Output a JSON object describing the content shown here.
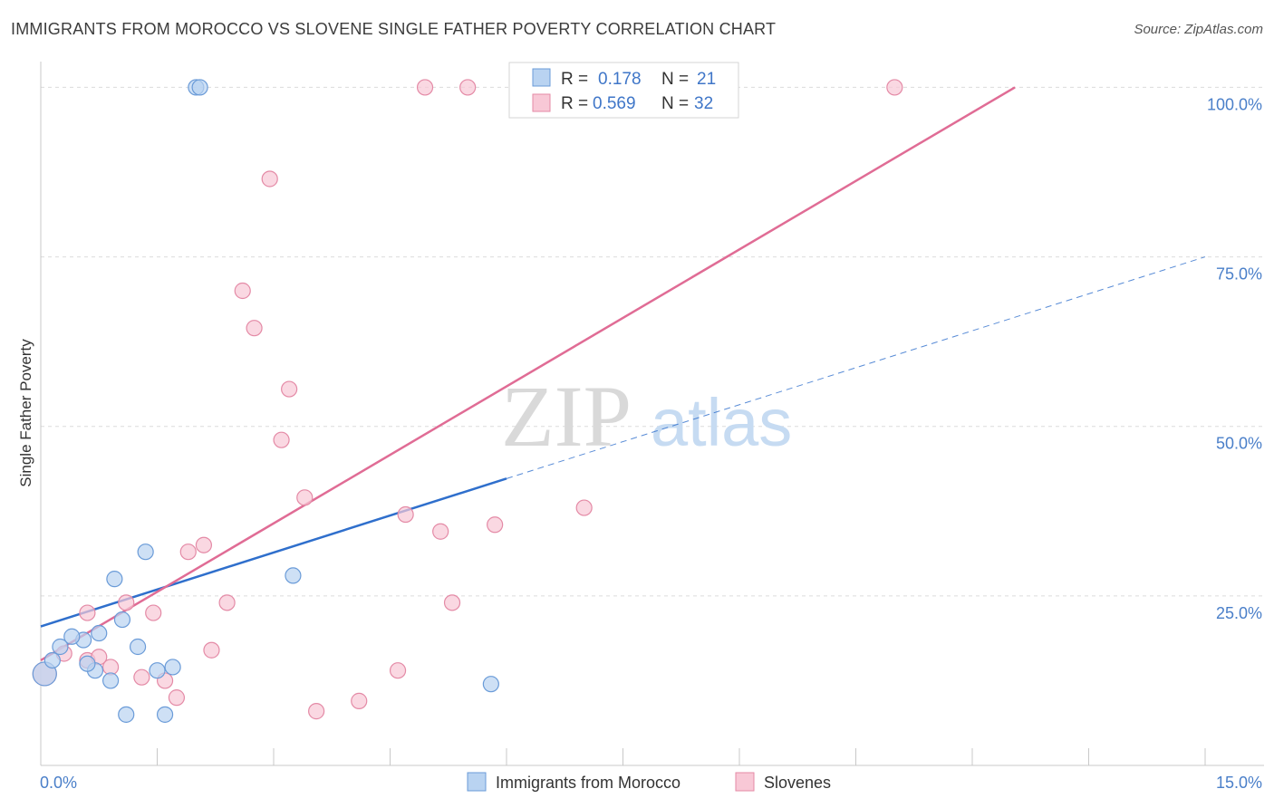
{
  "header": {
    "title": "IMMIGRANTS FROM MOROCCO VS SLOVENE SINGLE FATHER POVERTY CORRELATION CHART",
    "source": "Source: ZipAtlas.com"
  },
  "watermark": {
    "zip": "ZIP",
    "atlas": "atlas"
  },
  "colors": {
    "blue_fill": "#b9d3f1",
    "blue_stroke": "#6a9bd8",
    "blue_line": "#2f6fcc",
    "pink_fill": "#f8c8d6",
    "pink_stroke": "#e48aa6",
    "pink_line": "#e06c95",
    "grid": "#dcdcdc",
    "axis_text": "#4a7fc9"
  },
  "legend": {
    "rows": [
      {
        "r_label": "R = ",
        "r_value": "0.178",
        "n_label": "N = ",
        "n_value": "21"
      },
      {
        "r_label": "R = ",
        "r_value": "0.569",
        "n_label": "N = ",
        "n_value": "32"
      }
    ]
  },
  "chart_data": {
    "type": "scatter",
    "title": "IMMIGRANTS FROM MOROCCO VS SLOVENE SINGLE FATHER POVERTY CORRELATION CHART",
    "xlabel": "",
    "ylabel": "Single Father Poverty",
    "xlim": [
      0,
      15
    ],
    "ylim": [
      0,
      105
    ],
    "x_tick_labels": [
      "0.0%",
      "15.0%"
    ],
    "y_ticks": [
      25,
      50,
      75,
      100
    ],
    "y_tick_labels": [
      "25.0%",
      "50.0%",
      "75.0%",
      "100.0%"
    ],
    "grid": true,
    "series": [
      {
        "name": "Immigrants from Morocco",
        "color": "#b9d3f1",
        "points": [
          [
            0.05,
            13.5
          ],
          [
            0.15,
            15.5
          ],
          [
            0.25,
            17.5
          ],
          [
            0.55,
            18.5
          ],
          [
            0.4,
            19.0
          ],
          [
            0.75,
            19.5
          ],
          [
            0.7,
            14.0
          ],
          [
            0.9,
            12.5
          ],
          [
            1.05,
            21.5
          ],
          [
            1.25,
            17.5
          ],
          [
            0.95,
            27.5
          ],
          [
            1.35,
            31.5
          ],
          [
            1.5,
            14.0
          ],
          [
            1.7,
            14.5
          ],
          [
            1.1,
            7.5
          ],
          [
            1.6,
            7.5
          ],
          [
            2.0,
            100.0
          ],
          [
            2.05,
            100.0
          ],
          [
            3.25,
            28.0
          ],
          [
            5.8,
            12.0
          ],
          [
            0.6,
            15.0
          ]
        ],
        "trend": {
          "x0": 0.0,
          "y0": 20.5,
          "x_solid_end": 6.0,
          "x1": 15.0,
          "y1": 75.0
        }
      },
      {
        "name": "Slovenes",
        "color": "#f8c8d6",
        "points": [
          [
            0.05,
            13.5
          ],
          [
            0.3,
            16.5
          ],
          [
            0.6,
            15.5
          ],
          [
            0.75,
            16.0
          ],
          [
            0.9,
            14.5
          ],
          [
            0.6,
            22.5
          ],
          [
            1.1,
            24.0
          ],
          [
            1.3,
            13.0
          ],
          [
            1.45,
            22.5
          ],
          [
            1.6,
            12.5
          ],
          [
            1.75,
            10.0
          ],
          [
            1.9,
            31.5
          ],
          [
            2.1,
            32.5
          ],
          [
            2.2,
            17.0
          ],
          [
            2.4,
            24.0
          ],
          [
            2.6,
            70.0
          ],
          [
            2.75,
            64.5
          ],
          [
            2.95,
            86.5
          ],
          [
            3.1,
            48.0
          ],
          [
            3.2,
            55.5
          ],
          [
            3.4,
            39.5
          ],
          [
            3.55,
            8.0
          ],
          [
            4.1,
            9.5
          ],
          [
            4.6,
            14.0
          ],
          [
            4.7,
            37.0
          ],
          [
            5.15,
            34.5
          ],
          [
            5.3,
            24.0
          ],
          [
            5.85,
            35.5
          ],
          [
            7.0,
            38.0
          ],
          [
            4.95,
            100.0
          ],
          [
            5.5,
            100.0
          ],
          [
            11.0,
            100.0
          ]
        ],
        "trend": {
          "x0": 0.0,
          "y0": 15.5,
          "x1": 12.55,
          "y1": 100.0
        }
      }
    ]
  },
  "bottom_legend": [
    {
      "label": "Immigrants from Morocco"
    },
    {
      "label": "Slovenes"
    }
  ]
}
